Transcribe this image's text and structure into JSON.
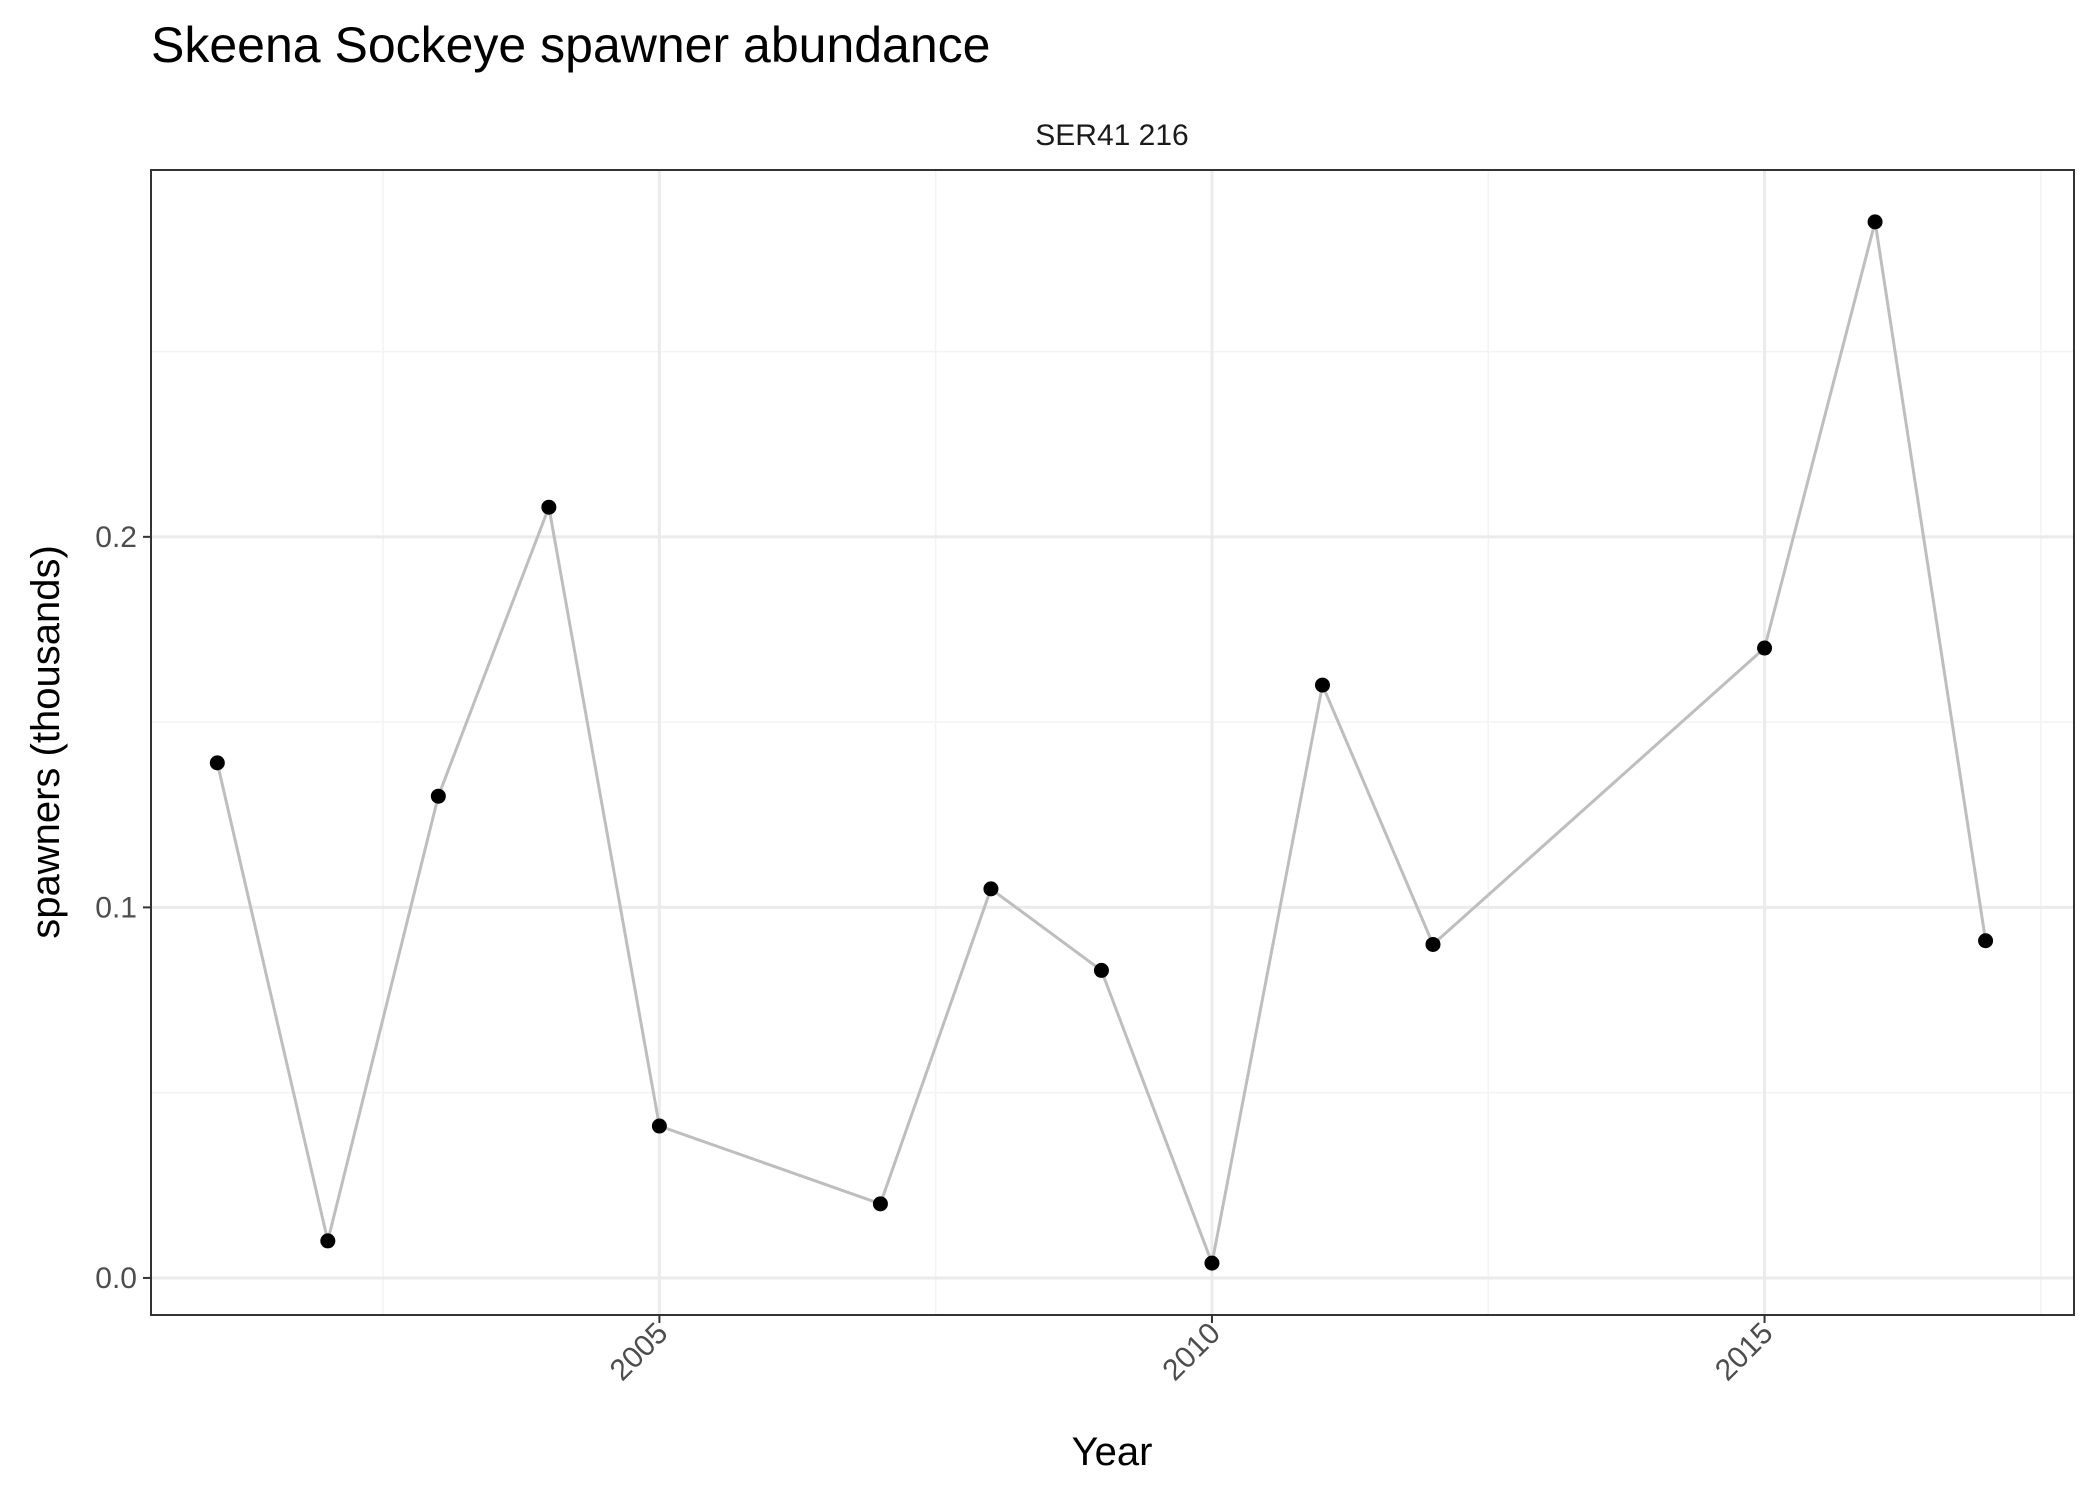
{
  "chart_data": {
    "type": "line",
    "title": "Skeena Sockeye spawner abundance",
    "facet_label": "SER41 216",
    "xlabel": "Year",
    "ylabel": "spawners (thousands)",
    "x_ticks": [
      2005,
      2010,
      2015
    ],
    "y_ticks": [
      0.0,
      0.1,
      0.2
    ],
    "y_tick_labels": [
      "0.0",
      "0.1",
      "0.2"
    ],
    "xlim": [
      2000.4,
      2017.8
    ],
    "ylim": [
      -0.01,
      0.299
    ],
    "grid": true,
    "theme": "bw",
    "series": [
      {
        "x": [
          2001,
          2002,
          2003,
          2004,
          2005,
          2007,
          2008,
          2009,
          2010,
          2011,
          2012,
          2015,
          2016,
          2017
        ],
        "values": [
          0.139,
          0.01,
          0.13,
          0.208,
          0.041,
          0.02,
          0.105,
          0.083,
          0.004,
          0.16,
          0.09,
          0.17,
          0.285,
          0.091
        ]
      }
    ],
    "colors": {
      "line": "#bebebe",
      "point": "#000000",
      "grid_major": "#ebebeb",
      "grid_minor": "#f3f3f3",
      "panel_border": "#333333",
      "tick_text": "#4d4d4d"
    }
  }
}
